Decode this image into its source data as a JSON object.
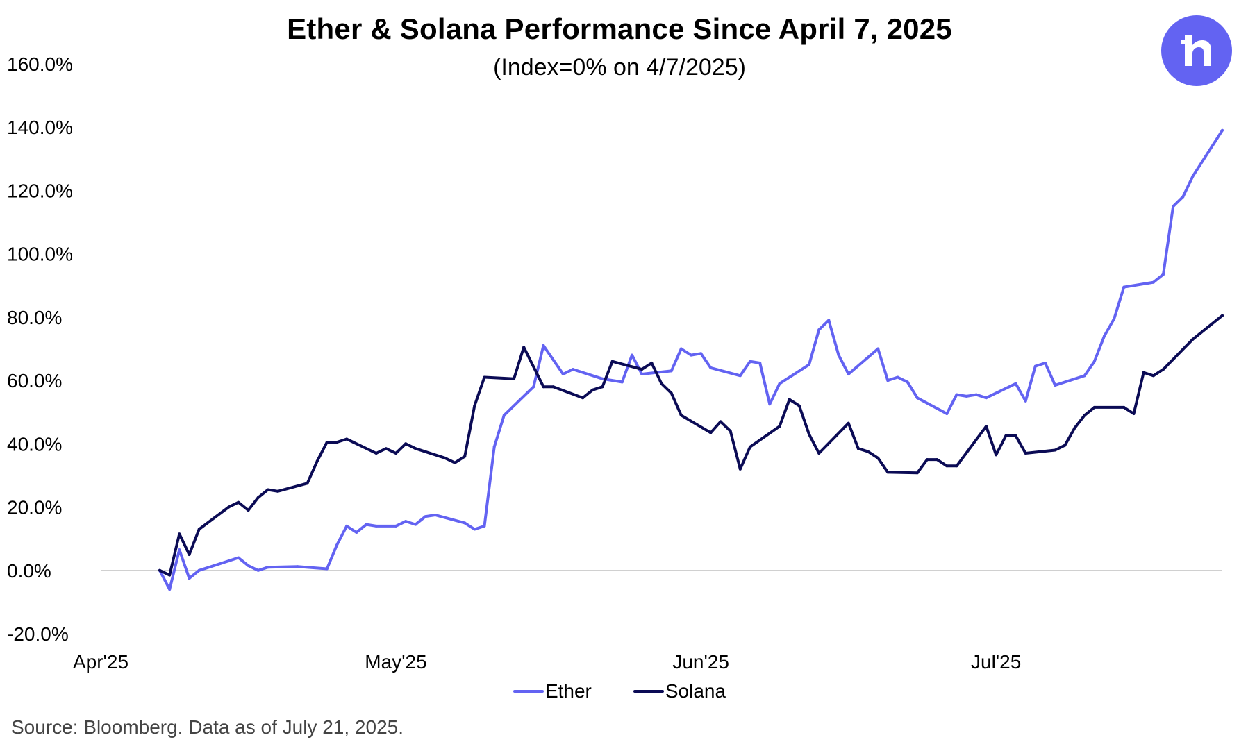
{
  "colors": {
    "ether": "#6363F2",
    "solana": "#0B0B55",
    "brand": "#6363F2",
    "axis": "#d0d0d0"
  },
  "logo": {
    "icon": "robinhood-h-icon"
  },
  "footer": {
    "source": "Source: Bloomberg. Data as of July 21, 2025."
  },
  "chart_data": {
    "type": "line",
    "title": "Ether & Solana Performance Since April 7, 2025",
    "subtitle": "(Index=0% on 4/7/2025)",
    "xlabel": "",
    "ylabel": "",
    "x_tick_labels": [
      "Apr'25",
      "May'25",
      "Jun'25",
      "Jul'25"
    ],
    "x_ticks": [
      "2025-04-01",
      "2025-05-01",
      "2025-06-01",
      "2025-07-01"
    ],
    "xlim": [
      "2025-04-01",
      "2025-07-24"
    ],
    "ylim": [
      -20,
      160
    ],
    "y_tick_labels": [
      "160.0%",
      "140.0%",
      "120.0%",
      "100.0%",
      "80.0%",
      "60.0%",
      "40.0%",
      "20.0%",
      "0.0%",
      "-20.0%"
    ],
    "y_ticks": [
      160,
      140,
      120,
      100,
      80,
      60,
      40,
      20,
      0,
      -20
    ],
    "grid": false,
    "legend_position": "bottom",
    "series": [
      {
        "name": "Ether",
        "color_key": "ether",
        "points": [
          [
            "2025-04-07",
            0.0
          ],
          [
            "2025-04-08",
            -6.0
          ],
          [
            "2025-04-09",
            6.5
          ],
          [
            "2025-04-10",
            -2.5
          ],
          [
            "2025-04-11",
            0.0
          ],
          [
            "2025-04-14",
            3.0
          ],
          [
            "2025-04-15",
            4.0
          ],
          [
            "2025-04-16",
            1.5
          ],
          [
            "2025-04-17",
            0.0
          ],
          [
            "2025-04-18",
            1.0
          ],
          [
            "2025-04-21",
            1.2
          ],
          [
            "2025-04-24",
            0.5
          ],
          [
            "2025-04-25",
            8.0
          ],
          [
            "2025-04-26",
            14.0
          ],
          [
            "2025-04-27",
            12.0
          ],
          [
            "2025-04-28",
            14.5
          ],
          [
            "2025-04-29",
            14.0
          ],
          [
            "2025-05-01",
            14.0
          ],
          [
            "2025-05-02",
            15.5
          ],
          [
            "2025-05-03",
            14.5
          ],
          [
            "2025-05-04",
            17.0
          ],
          [
            "2025-05-05",
            17.5
          ],
          [
            "2025-05-08",
            15.0
          ],
          [
            "2025-05-09",
            13.0
          ],
          [
            "2025-05-10",
            14.0
          ],
          [
            "2025-05-11",
            39.0
          ],
          [
            "2025-05-12",
            49.0
          ],
          [
            "2025-05-15",
            58.0
          ],
          [
            "2025-05-16",
            71.0
          ],
          [
            "2025-05-18",
            62.0
          ],
          [
            "2025-05-19",
            63.5
          ],
          [
            "2025-05-22",
            60.5
          ],
          [
            "2025-05-24",
            59.5
          ],
          [
            "2025-05-25",
            68.0
          ],
          [
            "2025-05-26",
            62.0
          ],
          [
            "2025-05-29",
            63.0
          ],
          [
            "2025-05-30",
            70.0
          ],
          [
            "2025-05-31",
            68.0
          ],
          [
            "2025-06-01",
            68.5
          ],
          [
            "2025-06-02",
            64.0
          ],
          [
            "2025-06-05",
            61.5
          ],
          [
            "2025-06-06",
            66.0
          ],
          [
            "2025-06-07",
            65.5
          ],
          [
            "2025-06-08",
            52.5
          ],
          [
            "2025-06-09",
            59.0
          ],
          [
            "2025-06-12",
            65.0
          ],
          [
            "2025-06-13",
            76.0
          ],
          [
            "2025-06-14",
            79.0
          ],
          [
            "2025-06-15",
            68.0
          ],
          [
            "2025-06-16",
            62.0
          ],
          [
            "2025-06-19",
            70.0
          ],
          [
            "2025-06-20",
            60.0
          ],
          [
            "2025-06-21",
            61.0
          ],
          [
            "2025-06-22",
            59.5
          ],
          [
            "2025-06-23",
            54.5
          ],
          [
            "2025-06-26",
            49.5
          ],
          [
            "2025-06-27",
            55.5
          ],
          [
            "2025-06-28",
            55.0
          ],
          [
            "2025-06-29",
            55.5
          ],
          [
            "2025-06-30",
            54.5
          ],
          [
            "2025-07-03",
            59.0
          ],
          [
            "2025-07-04",
            53.5
          ],
          [
            "2025-07-05",
            64.5
          ],
          [
            "2025-07-06",
            65.5
          ],
          [
            "2025-07-07",
            58.5
          ],
          [
            "2025-07-10",
            61.5
          ],
          [
            "2025-07-11",
            66.0
          ],
          [
            "2025-07-12",
            74.0
          ],
          [
            "2025-07-13",
            79.5
          ],
          [
            "2025-07-14",
            89.5
          ],
          [
            "2025-07-17",
            91.0
          ],
          [
            "2025-07-18",
            93.5
          ],
          [
            "2025-07-19",
            115.0
          ],
          [
            "2025-07-20",
            118.0
          ],
          [
            "2025-07-21",
            124.5
          ],
          [
            "2025-07-24",
            139.0
          ]
        ]
      },
      {
        "name": "Solana",
        "color_key": "solana",
        "points": [
          [
            "2025-04-07",
            0.0
          ],
          [
            "2025-04-08",
            -1.5
          ],
          [
            "2025-04-09",
            11.5
          ],
          [
            "2025-04-10",
            5.0
          ],
          [
            "2025-04-11",
            13.0
          ],
          [
            "2025-04-14",
            20.0
          ],
          [
            "2025-04-15",
            21.5
          ],
          [
            "2025-04-16",
            19.0
          ],
          [
            "2025-04-17",
            23.0
          ],
          [
            "2025-04-18",
            25.5
          ],
          [
            "2025-04-19",
            25.0
          ],
          [
            "2025-04-22",
            27.5
          ],
          [
            "2025-04-23",
            34.5
          ],
          [
            "2025-04-24",
            40.5
          ],
          [
            "2025-04-25",
            40.5
          ],
          [
            "2025-04-26",
            41.5
          ],
          [
            "2025-04-29",
            37.0
          ],
          [
            "2025-04-30",
            38.5
          ],
          [
            "2025-05-01",
            37.0
          ],
          [
            "2025-05-02",
            40.0
          ],
          [
            "2025-05-03",
            38.5
          ],
          [
            "2025-05-06",
            35.5
          ],
          [
            "2025-05-07",
            34.0
          ],
          [
            "2025-05-08",
            36.0
          ],
          [
            "2025-05-09",
            52.0
          ],
          [
            "2025-05-10",
            61.0
          ],
          [
            "2025-05-13",
            60.5
          ],
          [
            "2025-05-14",
            70.5
          ],
          [
            "2025-05-16",
            58.0
          ],
          [
            "2025-05-17",
            58.0
          ],
          [
            "2025-05-20",
            54.5
          ],
          [
            "2025-05-21",
            57.0
          ],
          [
            "2025-05-22",
            58.0
          ],
          [
            "2025-05-23",
            66.0
          ],
          [
            "2025-05-26",
            63.5
          ],
          [
            "2025-05-27",
            65.5
          ],
          [
            "2025-05-28",
            59.0
          ],
          [
            "2025-05-29",
            56.0
          ],
          [
            "2025-05-30",
            49.0
          ],
          [
            "2025-06-02",
            43.5
          ],
          [
            "2025-06-03",
            47.0
          ],
          [
            "2025-06-04",
            44.0
          ],
          [
            "2025-06-05",
            32.0
          ],
          [
            "2025-06-06",
            39.0
          ],
          [
            "2025-06-09",
            45.5
          ],
          [
            "2025-06-10",
            54.0
          ],
          [
            "2025-06-11",
            52.0
          ],
          [
            "2025-06-12",
            43.0
          ],
          [
            "2025-06-13",
            37.0
          ],
          [
            "2025-06-16",
            46.5
          ],
          [
            "2025-06-17",
            38.5
          ],
          [
            "2025-06-18",
            37.5
          ],
          [
            "2025-06-19",
            35.5
          ],
          [
            "2025-06-20",
            31.0
          ],
          [
            "2025-06-23",
            30.8
          ],
          [
            "2025-06-24",
            35.0
          ],
          [
            "2025-06-25",
            35.0
          ],
          [
            "2025-06-26",
            33.0
          ],
          [
            "2025-06-27",
            33.0
          ],
          [
            "2025-06-30",
            45.5
          ],
          [
            "2025-07-01",
            36.5
          ],
          [
            "2025-07-02",
            42.5
          ],
          [
            "2025-07-03",
            42.5
          ],
          [
            "2025-07-04",
            37.0
          ],
          [
            "2025-07-07",
            38.0
          ],
          [
            "2025-07-08",
            39.5
          ],
          [
            "2025-07-09",
            45.0
          ],
          [
            "2025-07-10",
            49.0
          ],
          [
            "2025-07-11",
            51.5
          ],
          [
            "2025-07-14",
            51.5
          ],
          [
            "2025-07-15",
            49.5
          ],
          [
            "2025-07-16",
            62.5
          ],
          [
            "2025-07-17",
            61.5
          ],
          [
            "2025-07-18",
            63.5
          ],
          [
            "2025-07-21",
            73.0
          ],
          [
            "2025-07-24",
            80.5
          ]
        ]
      }
    ]
  }
}
